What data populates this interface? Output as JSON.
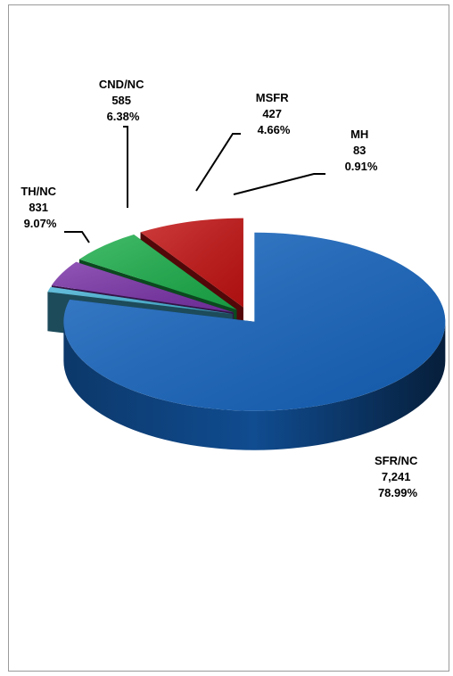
{
  "chart_data": {
    "type": "pie",
    "style": "3d-exploded",
    "title": "",
    "slices": [
      {
        "name": "SFR/NC",
        "value": "7,241",
        "percent": "78.99%",
        "v": 7241,
        "color": "#1565c0"
      },
      {
        "name": "MH",
        "value": "83",
        "percent": "0.91%",
        "v": 83,
        "color": "#46b3d6"
      },
      {
        "name": "MSFR",
        "value": "427",
        "percent": "4.66%",
        "v": 427,
        "color": "#7a32a8"
      },
      {
        "name": "CND/NC",
        "value": "585",
        "percent": "6.38%",
        "v": 585,
        "color": "#1bae4a"
      },
      {
        "name": "TH/NC",
        "value": "831",
        "percent": "9.07%",
        "v": 831,
        "color": "#c41212"
      }
    ],
    "legend": "none"
  }
}
